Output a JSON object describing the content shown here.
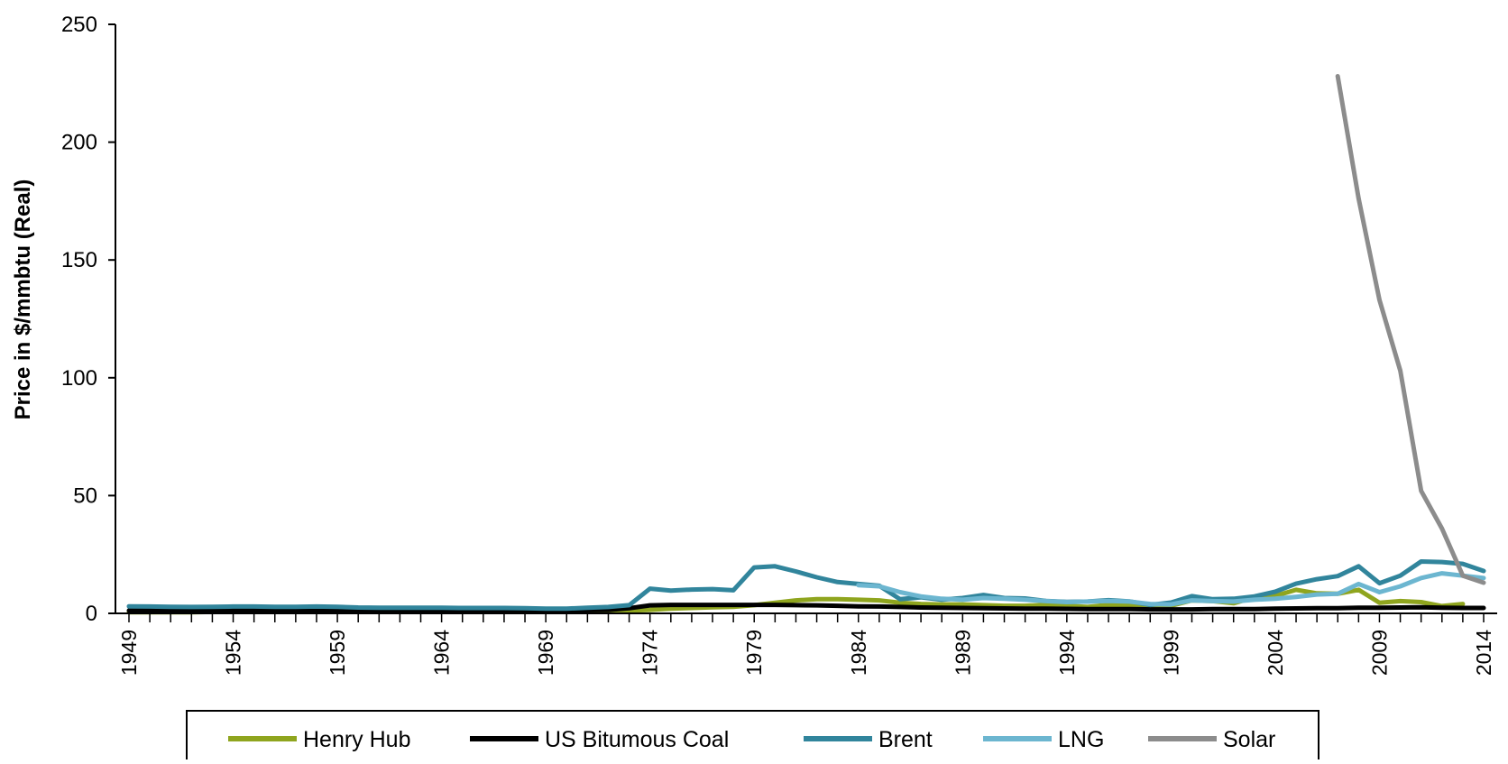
{
  "chart_data": {
    "type": "line",
    "title": "",
    "xlabel": "",
    "ylabel": "Price in $/mmbtu (Real)",
    "xlim": [
      1949,
      2014
    ],
    "ylim": [
      0,
      250
    ],
    "y_ticks": [
      0,
      50,
      100,
      150,
      200,
      250
    ],
    "x_tick_labels": [
      "1949",
      "1954",
      "1959",
      "1964",
      "1969",
      "1974",
      "1979",
      "1984",
      "1989",
      "1994",
      "1999",
      "2004",
      "2009",
      "2014"
    ],
    "grid": false,
    "legend_position": "bottom",
    "series": [
      {
        "name": "Henry Hub",
        "color": "#8fa51e",
        "x": [
          1949,
          1950,
          1951,
          1952,
          1953,
          1954,
          1955,
          1956,
          1957,
          1958,
          1959,
          1960,
          1961,
          1962,
          1963,
          1964,
          1965,
          1966,
          1967,
          1968,
          1969,
          1970,
          1971,
          1972,
          1973,
          1974,
          1975,
          1976,
          1977,
          1978,
          1979,
          1980,
          1981,
          1982,
          1983,
          1984,
          1985,
          1986,
          1987,
          1988,
          1989,
          1990,
          1991,
          1992,
          1993,
          1994,
          1995,
          1996,
          1997,
          1998,
          1999,
          2000,
          2001,
          2002,
          2003,
          2004,
          2005,
          2006,
          2007,
          2008,
          2009,
          2010,
          2011,
          2012,
          2013
        ],
        "y": [
          0.5,
          0.5,
          0.5,
          0.5,
          0.6,
          0.6,
          0.6,
          0.6,
          0.6,
          0.7,
          0.7,
          0.8,
          0.8,
          0.8,
          0.8,
          0.8,
          0.8,
          0.8,
          0.8,
          0.8,
          0.8,
          0.9,
          0.9,
          1.0,
          1.2,
          1.5,
          2.0,
          2.3,
          2.6,
          2.8,
          3.5,
          4.5,
          5.5,
          6.0,
          6.0,
          5.8,
          5.5,
          4.5,
          4.0,
          3.8,
          3.8,
          3.5,
          3.2,
          3.2,
          3.6,
          3.2,
          2.7,
          3.6,
          3.5,
          2.9,
          3.2,
          5.5,
          5.2,
          4.3,
          6.8,
          7.4,
          10.0,
          8.5,
          8.3,
          10.0,
          4.5,
          5.2,
          4.8,
          3.1,
          4.0
        ]
      },
      {
        "name": "US Bitumous Coal",
        "color": "#000000",
        "x": [
          1949,
          1954,
          1959,
          1964,
          1969,
          1972,
          1973,
          1974,
          1975,
          1976,
          1977,
          1978,
          1979,
          1980,
          1981,
          1982,
          1983,
          1984,
          1985,
          1986,
          1987,
          1988,
          1989,
          1990,
          1991,
          1992,
          1993,
          1994,
          1995,
          1996,
          1997,
          1998,
          1999,
          2000,
          2001,
          2002,
          2003,
          2004,
          2005,
          2006,
          2007,
          2008,
          2009,
          2010,
          2011,
          2012,
          2013,
          2014
        ],
        "y": [
          1.2,
          1.2,
          1.2,
          1.2,
          1.2,
          1.4,
          2.2,
          3.4,
          3.6,
          3.6,
          3.6,
          3.6,
          3.6,
          3.6,
          3.5,
          3.4,
          3.2,
          3.0,
          2.9,
          2.7,
          2.5,
          2.4,
          2.3,
          2.2,
          2.1,
          2.0,
          2.0,
          1.9,
          1.8,
          1.8,
          1.8,
          1.7,
          1.7,
          1.7,
          1.8,
          1.8,
          1.8,
          2.0,
          2.1,
          2.2,
          2.2,
          2.4,
          2.4,
          2.5,
          2.6,
          2.4,
          2.3,
          2.3
        ]
      },
      {
        "name": "Brent",
        "color": "#31859c",
        "x": [
          1949,
          1950,
          1951,
          1952,
          1953,
          1954,
          1955,
          1956,
          1957,
          1958,
          1959,
          1960,
          1961,
          1962,
          1963,
          1964,
          1965,
          1966,
          1967,
          1968,
          1969,
          1970,
          1971,
          1972,
          1973,
          1974,
          1975,
          1976,
          1977,
          1978,
          1979,
          1980,
          1981,
          1982,
          1983,
          1984,
          1985,
          1986,
          1987,
          1988,
          1989,
          1990,
          1991,
          1992,
          1993,
          1994,
          1995,
          1996,
          1997,
          1998,
          1999,
          2000,
          2001,
          2002,
          2003,
          2004,
          2005,
          2006,
          2007,
          2008,
          2009,
          2010,
          2011,
          2012,
          2013,
          2014
        ],
        "y": [
          3.0,
          2.9,
          2.8,
          2.7,
          2.8,
          2.9,
          2.9,
          2.8,
          2.8,
          2.9,
          2.8,
          2.5,
          2.4,
          2.4,
          2.4,
          2.4,
          2.3,
          2.3,
          2.3,
          2.2,
          2.0,
          2.0,
          2.4,
          2.7,
          3.5,
          10.5,
          9.7,
          10.1,
          10.3,
          9.8,
          19.5,
          20.0,
          17.8,
          15.3,
          13.3,
          12.5,
          11.7,
          6.0,
          6.8,
          5.8,
          6.5,
          7.8,
          6.5,
          6.3,
          5.3,
          4.9,
          5.0,
          5.6,
          5.1,
          3.6,
          4.6,
          7.3,
          6.0,
          6.2,
          7.2,
          9.2,
          12.6,
          14.5,
          15.8,
          20.0,
          12.8,
          16.0,
          22.0,
          21.8,
          21.0,
          18.0
        ]
      },
      {
        "name": "LNG",
        "color": "#6cb6d0",
        "x": [
          1984,
          1985,
          1986,
          1987,
          1988,
          1989,
          1990,
          1991,
          1992,
          1993,
          1994,
          1995,
          1996,
          1997,
          1998,
          1999,
          2000,
          2001,
          2002,
          2003,
          2004,
          2005,
          2006,
          2007,
          2008,
          2009,
          2010,
          2011,
          2012,
          2013,
          2014
        ],
        "y": [
          12.0,
          11.5,
          9.0,
          7.2,
          6.2,
          5.8,
          6.5,
          6.2,
          5.8,
          5.2,
          4.8,
          5.0,
          5.3,
          5.0,
          4.0,
          3.8,
          5.5,
          5.2,
          5.0,
          5.8,
          6.2,
          7.0,
          8.0,
          8.3,
          12.5,
          9.0,
          11.5,
          15.0,
          17.0,
          16.0,
          15.0
        ]
      },
      {
        "name": "Solar",
        "color": "#8c8c8c",
        "x": [
          2007,
          2008,
          2009,
          2010,
          2011,
          2012,
          2013,
          2014
        ],
        "y": [
          228,
          176,
          133,
          103,
          52,
          36,
          16,
          13
        ]
      }
    ]
  }
}
